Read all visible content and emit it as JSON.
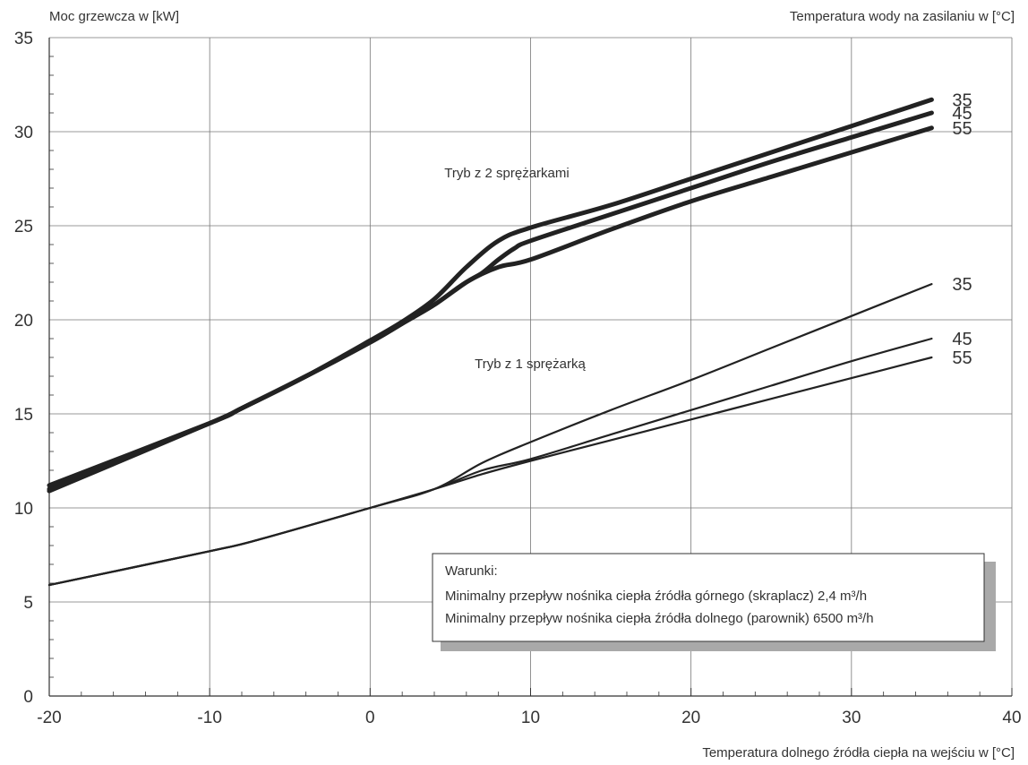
{
  "chart_data": {
    "type": "line",
    "ylabel": "Moc grzewcza w [kW]",
    "legend_title": "Temperatura wody na zasilaniu w [°C]",
    "xlabel": "Temperatura dolnego źródła ciepła na wejściu w [°C]",
    "xlim": [
      -20,
      40
    ],
    "ylim": [
      0,
      35
    ],
    "x_ticks": [
      "-20",
      "-10",
      "0",
      "10",
      "20",
      "30",
      "40"
    ],
    "y_ticks": [
      "0",
      "5",
      "10",
      "15",
      "20",
      "25",
      "30",
      "35"
    ],
    "grid": true,
    "annotations": {
      "mode_two": "Tryb z 2 sprężarkami",
      "mode_one": "Tryb z 1 sprężarką"
    },
    "conditions": {
      "title": "Warunki:",
      "line1": "Minimalny przepływ nośnika ciepła źródła górnego (skraplacz) 2,4 m³/h",
      "line2": "Minimalny przepływ nośnika ciepła źródła dolnego (parownik) 6500 m³/h"
    },
    "series": [
      {
        "name": "35",
        "group": "Tryb z 2 sprężarkami",
        "x": [
          -20,
          -10,
          -8,
          -4,
          0,
          2,
          4,
          6,
          8,
          10,
          15,
          20,
          25,
          30,
          35
        ],
        "y": [
          11.2,
          14.5,
          15.3,
          17.0,
          18.9,
          19.9,
          21.1,
          22.8,
          24.2,
          24.9,
          26.1,
          27.5,
          28.9,
          30.3,
          31.7
        ]
      },
      {
        "name": "45",
        "group": "Tryb z 2 sprężarkami",
        "x": [
          -20,
          -10,
          -8,
          -4,
          0,
          2,
          4,
          6,
          7,
          8,
          9,
          10,
          15,
          20,
          25,
          30,
          35
        ],
        "y": [
          11.0,
          14.5,
          15.3,
          17.0,
          18.8,
          19.8,
          20.8,
          22.0,
          22.5,
          23.2,
          23.8,
          24.2,
          25.6,
          27.0,
          28.4,
          29.7,
          31.0
        ]
      },
      {
        "name": "55",
        "group": "Tryb z 2 sprężarkami",
        "x": [
          -20,
          -10,
          -8,
          -4,
          0,
          2,
          4,
          6,
          8,
          10,
          15,
          20,
          25,
          30,
          35
        ],
        "y": [
          10.9,
          14.5,
          15.3,
          17.0,
          18.8,
          19.8,
          20.8,
          22.0,
          22.8,
          23.2,
          24.8,
          26.3,
          27.6,
          28.9,
          30.2
        ]
      },
      {
        "name": "35",
        "group": "Tryb z 1 sprężarką",
        "x": [
          -20,
          -10,
          -7,
          0,
          4,
          7,
          10,
          15,
          20,
          25,
          30,
          35
        ],
        "y": [
          5.9,
          7.7,
          8.3,
          10.0,
          11.0,
          12.4,
          13.5,
          15.2,
          16.8,
          18.5,
          20.2,
          21.9
        ]
      },
      {
        "name": "45",
        "group": "Tryb z 1 sprężarką",
        "x": [
          -20,
          -10,
          -7,
          0,
          4,
          7,
          10,
          15,
          20,
          25,
          30,
          35
        ],
        "y": [
          5.9,
          7.7,
          8.3,
          10.0,
          11.0,
          12.0,
          12.6,
          13.9,
          15.2,
          16.5,
          17.8,
          19.0
        ]
      },
      {
        "name": "55",
        "group": "Tryb z 1 sprężarką",
        "x": [
          -20,
          -10,
          -7,
          0,
          4,
          7,
          10,
          15,
          20,
          25,
          30,
          35
        ],
        "y": [
          5.9,
          7.7,
          8.3,
          10.0,
          11.0,
          11.8,
          12.5,
          13.6,
          14.7,
          15.8,
          16.9,
          18.0
        ]
      }
    ]
  }
}
